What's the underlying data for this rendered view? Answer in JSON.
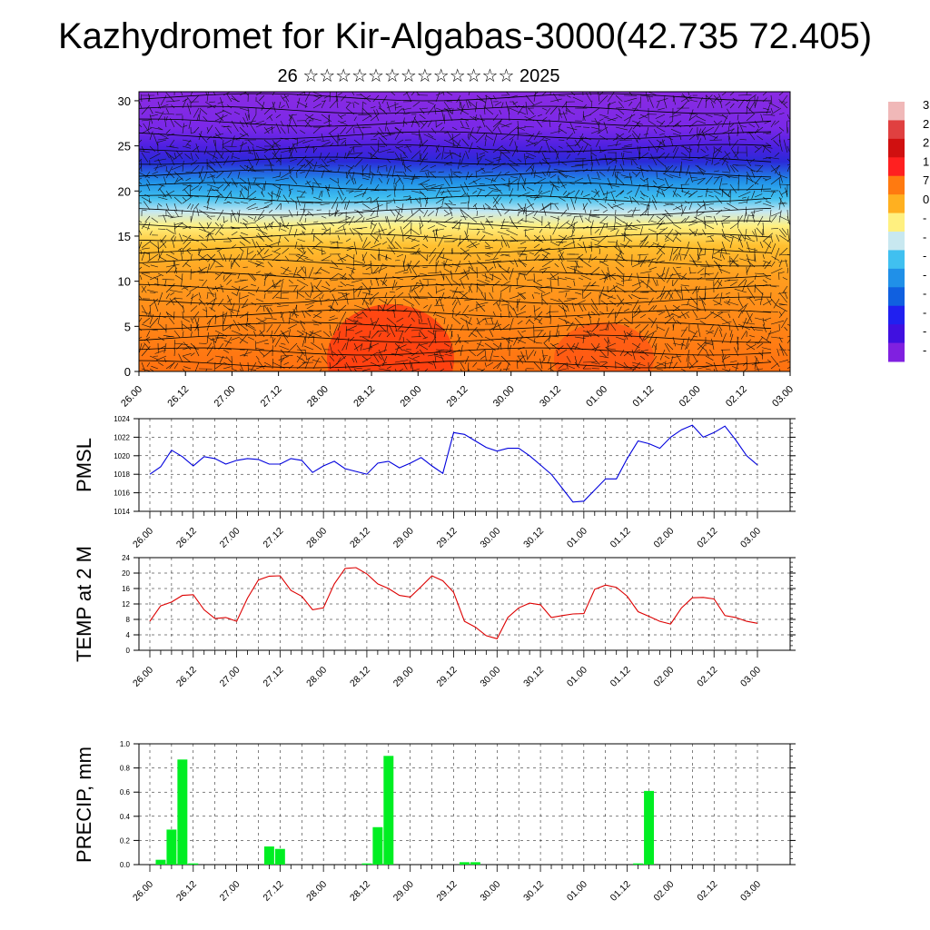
{
  "title": "Kazhydromet for Kir-Algabas-3000(42.735 72.405)",
  "subtitle": "26 ☆☆☆☆☆☆☆☆☆☆☆☆☆ 2025",
  "time_labels": [
    "26.00",
    "26.12",
    "27.00",
    "27.12",
    "28.00",
    "28.12",
    "29.00",
    "29.12",
    "30.00",
    "30.12",
    "01.00",
    "01.12",
    "02.00",
    "02.12",
    "03.00"
  ],
  "colorbar": {
    "labels": [
      "3",
      "2",
      "2",
      "1",
      "7",
      "0",
      "-",
      "-",
      "-",
      "-",
      "-",
      "-",
      "-",
      "-"
    ],
    "colors": [
      "#f0b8b8",
      "#e04040",
      "#d01010",
      "#ff2020",
      "#ff7a10",
      "#ffb020",
      "#fff080",
      "#c8e8f0",
      "#40c0f0",
      "#2090e8",
      "#1060e0",
      "#2020f0",
      "#4010e0",
      "#8020e0"
    ]
  },
  "chart_data": [
    {
      "type": "heatmap",
      "description_label": "vertical cross-section",
      "x": [
        "26.00",
        "26.12",
        "27.00",
        "27.12",
        "28.00",
        "28.12",
        "29.00",
        "29.12",
        "30.00",
        "30.12",
        "01.00",
        "01.12",
        "02.00",
        "02.12",
        "03.00"
      ],
      "yticks": [
        0,
        5,
        10,
        15,
        20,
        25,
        30
      ],
      "ylim": [
        0,
        31
      ],
      "colormap": [
        "#f0b8b8",
        "#e04040",
        "#d01010",
        "#ff2020",
        "#ff7a10",
        "#ffb020",
        "#fff080",
        "#c8e8f0",
        "#40c0f0",
        "#2090e8",
        "#1060e0",
        "#2020f0",
        "#4010e0",
        "#8020e0"
      ]
    },
    {
      "type": "line",
      "ylabel": "PMSL",
      "ylim": [
        1014,
        1024
      ],
      "yticks": [
        1014,
        1016,
        1018,
        1020,
        1022,
        1024
      ],
      "color": "#0000dd",
      "series": [
        {
          "values": [
            1018.0,
            1018.8,
            1020.6,
            1019.9,
            1018.9,
            1019.9,
            1019.7,
            1019.1,
            1019.5,
            1019.7,
            1019.6,
            1019.1,
            1019.1,
            1019.7,
            1019.5,
            1018.2,
            1018.9,
            1019.4,
            1018.6,
            1018.3,
            1018.0,
            1019.2,
            1019.4,
            1018.7,
            1019.2,
            1019.8,
            1018.9,
            1018.1,
            1022.5,
            1022.3,
            1021.6,
            1020.9,
            1020.5,
            1020.8,
            1020.8,
            1020.0,
            1019.0,
            1018.0,
            1016.5,
            1015.0,
            1015.1,
            1016.3,
            1017.5,
            1017.5,
            1019.7,
            1021.6,
            1021.3,
            1020.8,
            1022.0,
            1022.8,
            1023.3,
            1022.0,
            1022.5,
            1023.2,
            1021.7,
            1020.0,
            1019.0
          ]
        }
      ]
    },
    {
      "type": "line",
      "ylabel": "TEMP at 2 M",
      "ylim": [
        0,
        24
      ],
      "yticks": [
        0,
        4,
        8,
        12,
        16,
        20,
        24
      ],
      "color": "#dd0000",
      "series": [
        {
          "values": [
            7.5,
            11.5,
            12.5,
            14.2,
            14.4,
            10.5,
            8.2,
            8.5,
            7.5,
            13.5,
            18.2,
            19.2,
            19.3,
            15.5,
            14.0,
            10.5,
            11.0,
            17.2,
            21.2,
            21.4,
            19.8,
            17.2,
            16.0,
            14.2,
            13.8,
            16.5,
            19.3,
            18.0,
            15.0,
            7.5,
            6.0,
            3.8,
            3.0,
            8.5,
            11.0,
            12.2,
            11.8,
            8.5,
            9.0,
            9.4,
            9.5,
            15.8,
            16.9,
            16.3,
            14.0,
            10.0,
            8.8,
            7.5,
            6.8,
            11.0,
            13.6,
            13.7,
            13.3,
            9.0,
            8.5,
            7.5,
            7.0
          ]
        }
      ]
    },
    {
      "type": "bar",
      "ylabel": "PRECIP, mm",
      "ylim": [
        0,
        1.0
      ],
      "yticks": [
        0.0,
        0.2,
        0.4,
        0.6,
        0.8,
        1.0
      ],
      "ytick_labels": [
        "0.0",
        "0.2",
        "0.4",
        "0.6",
        "0.8",
        "1.0"
      ],
      "color": "#00ee22",
      "values": [
        0,
        0.04,
        0.29,
        0.87,
        0.01,
        0,
        0,
        0,
        0,
        0,
        0,
        0.15,
        0.13,
        0,
        0,
        0,
        0,
        0,
        0,
        0,
        0.01,
        0.31,
        0.9,
        0,
        0,
        0,
        0,
        0,
        0,
        0.02,
        0.02,
        0,
        0,
        0,
        0,
        0,
        0,
        0,
        0,
        0,
        0,
        0,
        0,
        0,
        0,
        0.01,
        0.61,
        0,
        0,
        0,
        0,
        0,
        0,
        0,
        0,
        0,
        0
      ]
    }
  ]
}
